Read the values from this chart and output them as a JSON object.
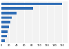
{
  "values": [
    160,
    83,
    40,
    28,
    24,
    20,
    17,
    14,
    10
  ],
  "bar_color": "#2f6db5",
  "background_color": "#ffffff",
  "plot_bg_color": "#f2f2f2",
  "xlim": [
    0,
    175
  ],
  "bar_height": 0.55,
  "grid_color": "#ffffff",
  "xticks": [
    0,
    20,
    40,
    60,
    80,
    100,
    120,
    140,
    160
  ],
  "tick_fontsize": 2.5
}
